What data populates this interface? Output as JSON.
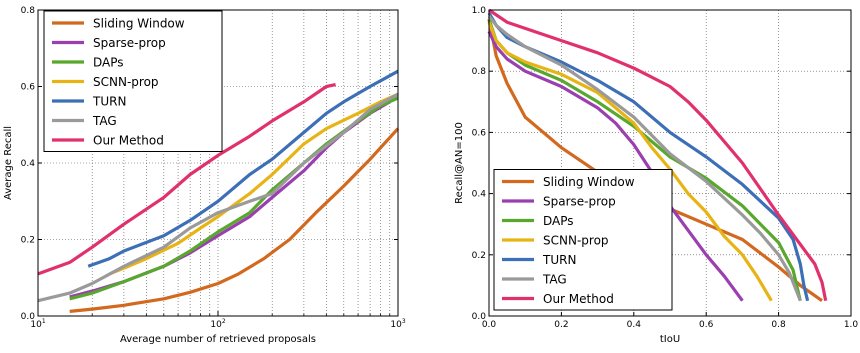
{
  "chart_data": [
    {
      "type": "line",
      "xlabel": "Average number of retrieved proposals",
      "ylabel": "Average Recall",
      "xscale": "log",
      "xlim": [
        10,
        1000
      ],
      "ylim": [
        0,
        0.8
      ],
      "yticks": [
        0.0,
        0.2,
        0.4,
        0.6,
        0.8
      ],
      "xtick_labels": [
        {
          "value": 10,
          "base": "10",
          "exp": "1"
        },
        {
          "value": 100,
          "base": "10",
          "exp": "2"
        },
        {
          "value": 1000,
          "base": "10",
          "exp": "3"
        }
      ],
      "grid": true,
      "legend_position": "upper-left",
      "series": [
        {
          "name": "Sliding Window",
          "color": "#d2691e",
          "points": [
            [
              15,
              0.012
            ],
            [
              20,
              0.018
            ],
            [
              30,
              0.028
            ],
            [
              50,
              0.045
            ],
            [
              70,
              0.062
            ],
            [
              100,
              0.085
            ],
            [
              130,
              0.11
            ],
            [
              180,
              0.15
            ],
            [
              250,
              0.2
            ],
            [
              350,
              0.27
            ],
            [
              500,
              0.34
            ],
            [
              700,
              0.41
            ],
            [
              1000,
              0.49
            ]
          ]
        },
        {
          "name": "Sparse-prop",
          "color": "#9b3fb0",
          "points": [
            [
              15,
              0.05
            ],
            [
              20,
              0.065
            ],
            [
              30,
              0.09
            ],
            [
              50,
              0.13
            ],
            [
              70,
              0.165
            ],
            [
              100,
              0.21
            ],
            [
              150,
              0.26
            ],
            [
              200,
              0.31
            ],
            [
              300,
              0.38
            ],
            [
              400,
              0.44
            ],
            [
              500,
              0.48
            ],
            [
              700,
              0.53
            ],
            [
              900,
              0.56
            ]
          ]
        },
        {
          "name": "DAPs",
          "color": "#59a82e",
          "points": [
            [
              15,
              0.045
            ],
            [
              20,
              0.06
            ],
            [
              30,
              0.09
            ],
            [
              50,
              0.13
            ],
            [
              70,
              0.17
            ],
            [
              100,
              0.22
            ],
            [
              150,
              0.27
            ],
            [
              200,
              0.33
            ],
            [
              300,
              0.4
            ],
            [
              400,
              0.45
            ],
            [
              600,
              0.51
            ],
            [
              800,
              0.55
            ],
            [
              1000,
              0.57
            ]
          ]
        },
        {
          "name": "SCNN-prop",
          "color": "#e8b415",
          "points": [
            [
              25,
              0.11
            ],
            [
              30,
              0.125
            ],
            [
              40,
              0.15
            ],
            [
              60,
              0.19
            ],
            [
              80,
              0.23
            ],
            [
              100,
              0.26
            ],
            [
              150,
              0.32
            ],
            [
              200,
              0.37
            ],
            [
              300,
              0.45
            ],
            [
              400,
              0.49
            ],
            [
              600,
              0.53
            ],
            [
              800,
              0.56
            ],
            [
              1000,
              0.58
            ]
          ]
        },
        {
          "name": "TURN",
          "color": "#3d6fb6",
          "points": [
            [
              19,
              0.13
            ],
            [
              25,
              0.15
            ],
            [
              30,
              0.17
            ],
            [
              50,
              0.21
            ],
            [
              70,
              0.25
            ],
            [
              100,
              0.3
            ],
            [
              150,
              0.37
            ],
            [
              200,
              0.41
            ],
            [
              300,
              0.48
            ],
            [
              400,
              0.53
            ],
            [
              500,
              0.56
            ],
            [
              700,
              0.6
            ],
            [
              1000,
              0.64
            ]
          ]
        },
        {
          "name": "TAG",
          "color": "#9a9a9a",
          "points": [
            [
              10,
              0.04
            ],
            [
              15,
              0.06
            ],
            [
              20,
              0.085
            ],
            [
              30,
              0.13
            ],
            [
              50,
              0.18
            ],
            [
              70,
              0.23
            ],
            [
              100,
              0.27
            ],
            [
              150,
              0.3
            ],
            [
              200,
              0.32
            ],
            [
              300,
              0.4
            ],
            [
              500,
              0.48
            ],
            [
              700,
              0.54
            ],
            [
              1000,
              0.58
            ]
          ]
        },
        {
          "name": "Our Method",
          "color": "#e0316e",
          "points": [
            [
              10,
              0.11
            ],
            [
              15,
              0.14
            ],
            [
              20,
              0.18
            ],
            [
              30,
              0.24
            ],
            [
              50,
              0.31
            ],
            [
              70,
              0.37
            ],
            [
              100,
              0.42
            ],
            [
              150,
              0.47
            ],
            [
              200,
              0.51
            ],
            [
              300,
              0.56
            ],
            [
              400,
              0.6
            ],
            [
              450,
              0.605
            ]
          ]
        }
      ]
    },
    {
      "type": "line",
      "xlabel": "tIoU",
      "ylabel": "Recall@AN=100",
      "xscale": "linear",
      "xlim": [
        0,
        1
      ],
      "ylim": [
        0,
        1
      ],
      "xticks": [
        0.0,
        0.2,
        0.4,
        0.6,
        0.8,
        1.0
      ],
      "yticks": [
        0.0,
        0.2,
        0.4,
        0.6,
        0.8,
        1.0
      ],
      "grid": true,
      "legend_position": "lower-left",
      "series": [
        {
          "name": "Sliding Window",
          "color": "#d2691e",
          "points": [
            [
              0,
              0.97
            ],
            [
              0.02,
              0.85
            ],
            [
              0.05,
              0.76
            ],
            [
              0.1,
              0.65
            ],
            [
              0.15,
              0.6
            ],
            [
              0.2,
              0.55
            ],
            [
              0.3,
              0.47
            ],
            [
              0.4,
              0.4
            ],
            [
              0.5,
              0.35
            ],
            [
              0.6,
              0.3
            ],
            [
              0.7,
              0.25
            ],
            [
              0.8,
              0.16
            ],
            [
              0.86,
              0.1
            ],
            [
              0.92,
              0.05
            ]
          ]
        },
        {
          "name": "Sparse-prop",
          "color": "#9b3fb0",
          "points": [
            [
              0,
              0.93
            ],
            [
              0.02,
              0.88
            ],
            [
              0.05,
              0.84
            ],
            [
              0.1,
              0.8
            ],
            [
              0.2,
              0.75
            ],
            [
              0.3,
              0.68
            ],
            [
              0.35,
              0.63
            ],
            [
              0.4,
              0.56
            ],
            [
              0.45,
              0.47
            ],
            [
              0.5,
              0.36
            ],
            [
              0.55,
              0.28
            ],
            [
              0.6,
              0.2
            ],
            [
              0.65,
              0.13
            ],
            [
              0.7,
              0.05
            ]
          ]
        },
        {
          "name": "DAPs",
          "color": "#59a82e",
          "points": [
            [
              0,
              0.97
            ],
            [
              0.02,
              0.9
            ],
            [
              0.05,
              0.86
            ],
            [
              0.1,
              0.82
            ],
            [
              0.2,
              0.77
            ],
            [
              0.3,
              0.7
            ],
            [
              0.4,
              0.62
            ],
            [
              0.5,
              0.52
            ],
            [
              0.6,
              0.45
            ],
            [
              0.7,
              0.36
            ],
            [
              0.75,
              0.3
            ],
            [
              0.8,
              0.24
            ],
            [
              0.84,
              0.15
            ],
            [
              0.86,
              0.05
            ]
          ]
        },
        {
          "name": "SCNN-prop",
          "color": "#e8b415",
          "points": [
            [
              0,
              0.96
            ],
            [
              0.02,
              0.9
            ],
            [
              0.05,
              0.86
            ],
            [
              0.1,
              0.83
            ],
            [
              0.2,
              0.79
            ],
            [
              0.3,
              0.73
            ],
            [
              0.4,
              0.63
            ],
            [
              0.45,
              0.55
            ],
            [
              0.5,
              0.48
            ],
            [
              0.55,
              0.4
            ],
            [
              0.6,
              0.34
            ],
            [
              0.65,
              0.26
            ],
            [
              0.7,
              0.2
            ],
            [
              0.74,
              0.13
            ],
            [
              0.78,
              0.05
            ]
          ]
        },
        {
          "name": "TURN",
          "color": "#3d6fb6",
          "points": [
            [
              0,
              0.99
            ],
            [
              0.02,
              0.95
            ],
            [
              0.05,
              0.91
            ],
            [
              0.1,
              0.88
            ],
            [
              0.2,
              0.83
            ],
            [
              0.3,
              0.77
            ],
            [
              0.4,
              0.7
            ],
            [
              0.5,
              0.6
            ],
            [
              0.6,
              0.52
            ],
            [
              0.7,
              0.43
            ],
            [
              0.8,
              0.32
            ],
            [
              0.84,
              0.25
            ],
            [
              0.86,
              0.17
            ],
            [
              0.87,
              0.1
            ],
            [
              0.88,
              0.05
            ]
          ]
        },
        {
          "name": "TAG",
          "color": "#9a9a9a",
          "points": [
            [
              0,
              0.98
            ],
            [
              0.02,
              0.95
            ],
            [
              0.05,
              0.92
            ],
            [
              0.1,
              0.88
            ],
            [
              0.2,
              0.82
            ],
            [
              0.3,
              0.74
            ],
            [
              0.4,
              0.65
            ],
            [
              0.5,
              0.53
            ],
            [
              0.6,
              0.44
            ],
            [
              0.7,
              0.33
            ],
            [
              0.75,
              0.27
            ],
            [
              0.8,
              0.2
            ],
            [
              0.83,
              0.14
            ],
            [
              0.86,
              0.05
            ]
          ]
        },
        {
          "name": "Our Method",
          "color": "#e0316e",
          "points": [
            [
              0,
              1.0
            ],
            [
              0.05,
              0.96
            ],
            [
              0.1,
              0.94
            ],
            [
              0.2,
              0.9
            ],
            [
              0.3,
              0.86
            ],
            [
              0.4,
              0.81
            ],
            [
              0.5,
              0.75
            ],
            [
              0.55,
              0.7
            ],
            [
              0.6,
              0.64
            ],
            [
              0.7,
              0.5
            ],
            [
              0.8,
              0.33
            ],
            [
              0.85,
              0.25
            ],
            [
              0.9,
              0.17
            ],
            [
              0.92,
              0.11
            ],
            [
              0.93,
              0.05
            ]
          ]
        }
      ]
    }
  ]
}
